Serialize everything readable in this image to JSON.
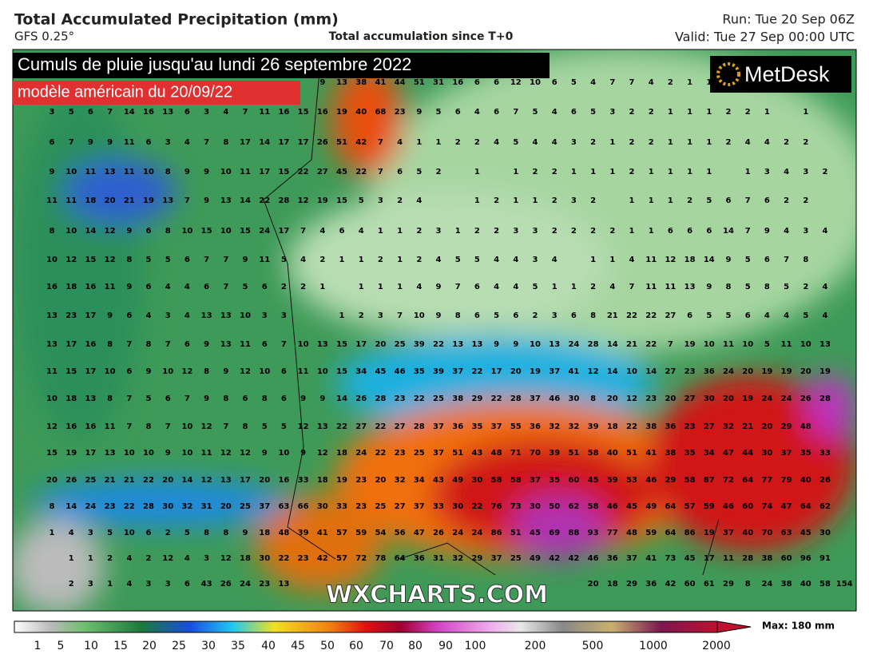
{
  "header": {
    "title": "Total Accumulated Precipitation (mm)",
    "model": "GFS 0.25°",
    "subtitle": "Total accumulation since T+0",
    "run": "Run: Tue 20 Sep 06Z",
    "valid": "Valid: Tue 27 Sep 00:00 UTC"
  },
  "overlay": {
    "headline": "Cumuls de pluie jusqu'au lundi 26 septembre 2022",
    "model_note": "modèle américain du 20/09/22",
    "logo": "MetDesk",
    "watermark": "WXCHARTS.COM"
  },
  "map": {
    "rows": [
      [
        null,
        null,
        null,
        null,
        null,
        null,
        null,
        null,
        null,
        null,
        null,
        null,
        null,
        null,
        9,
        13,
        38,
        41,
        44,
        51,
        31,
        16,
        6,
        6,
        12,
        10,
        6,
        5,
        4,
        7,
        7,
        4,
        2,
        1,
        1
      ],
      [
        3,
        5,
        6,
        7,
        14,
        16,
        13,
        6,
        3,
        4,
        7,
        11,
        16,
        15,
        16,
        19,
        40,
        68,
        23,
        9,
        5,
        6,
        4,
        6,
        7,
        5,
        4,
        6,
        5,
        3,
        2,
        2,
        1,
        1,
        1,
        2,
        2,
        1,
        null,
        1
      ],
      [
        6,
        7,
        9,
        9,
        11,
        6,
        3,
        4,
        7,
        8,
        17,
        14,
        17,
        17,
        26,
        51,
        42,
        7,
        4,
        1,
        1,
        2,
        2,
        4,
        5,
        4,
        4,
        3,
        2,
        1,
        2,
        2,
        1,
        1,
        1,
        2,
        4,
        4,
        2,
        2
      ],
      [
        9,
        10,
        11,
        13,
        11,
        10,
        8,
        9,
        9,
        10,
        11,
        17,
        15,
        22,
        27,
        45,
        22,
        7,
        6,
        5,
        2,
        null,
        1,
        null,
        1,
        2,
        2,
        1,
        1,
        1,
        2,
        1,
        1,
        1,
        1,
        null,
        1,
        3,
        4,
        3,
        2
      ],
      [
        11,
        11,
        18,
        20,
        21,
        19,
        13,
        7,
        9,
        13,
        14,
        22,
        28,
        12,
        19,
        15,
        5,
        3,
        2,
        4,
        null,
        null,
        1,
        2,
        1,
        1,
        2,
        3,
        2,
        null,
        1,
        1,
        1,
        2,
        5,
        6,
        7,
        6,
        2,
        2
      ],
      [
        8,
        10,
        14,
        12,
        9,
        6,
        8,
        10,
        15,
        10,
        15,
        24,
        17,
        7,
        4,
        6,
        4,
        1,
        1,
        2,
        3,
        1,
        2,
        2,
        3,
        3,
        2,
        2,
        2,
        2,
        1,
        1,
        6,
        6,
        6,
        14,
        7,
        9,
        4,
        3,
        4
      ],
      [
        10,
        12,
        15,
        12,
        8,
        5,
        5,
        6,
        7,
        7,
        9,
        11,
        5,
        4,
        2,
        1,
        1,
        2,
        1,
        2,
        4,
        5,
        5,
        4,
        4,
        3,
        4,
        null,
        1,
        1,
        4,
        11,
        12,
        18,
        14,
        9,
        5,
        6,
        7,
        8
      ],
      [
        16,
        18,
        16,
        11,
        9,
        6,
        4,
        4,
        6,
        7,
        5,
        6,
        2,
        2,
        1,
        null,
        1,
        1,
        1,
        4,
        9,
        7,
        6,
        4,
        4,
        5,
        1,
        1,
        2,
        4,
        7,
        11,
        11,
        13,
        9,
        8,
        5,
        8,
        5,
        2,
        4
      ],
      [
        13,
        23,
        17,
        9,
        6,
        4,
        3,
        4,
        13,
        13,
        10,
        3,
        3,
        null,
        null,
        1,
        2,
        3,
        7,
        10,
        9,
        8,
        6,
        5,
        6,
        2,
        3,
        6,
        8,
        21,
        22,
        22,
        27,
        6,
        5,
        5,
        6,
        4,
        4,
        5,
        4
      ],
      [
        13,
        17,
        16,
        8,
        7,
        8,
        7,
        6,
        9,
        13,
        11,
        6,
        7,
        10,
        13,
        15,
        17,
        20,
        25,
        39,
        22,
        13,
        13,
        9,
        9,
        10,
        13,
        24,
        28,
        14,
        21,
        22,
        7,
        19,
        10,
        11,
        10,
        5,
        11,
        10,
        13
      ],
      [
        11,
        15,
        17,
        10,
        6,
        9,
        10,
        12,
        8,
        9,
        12,
        10,
        6,
        11,
        10,
        15,
        34,
        45,
        46,
        35,
        39,
        37,
        22,
        17,
        20,
        19,
        37,
        41,
        12,
        14,
        10,
        14,
        27,
        23,
        36,
        24,
        20,
        19,
        19,
        20,
        19
      ],
      [
        10,
        18,
        13,
        8,
        7,
        5,
        6,
        7,
        9,
        8,
        6,
        8,
        6,
        9,
        9,
        14,
        26,
        28,
        23,
        22,
        25,
        38,
        29,
        22,
        28,
        37,
        46,
        30,
        8,
        20,
        12,
        23,
        20,
        27,
        30,
        20,
        19,
        24,
        24,
        26,
        28
      ],
      [
        12,
        16,
        16,
        11,
        7,
        8,
        7,
        10,
        12,
        7,
        8,
        5,
        5,
        12,
        13,
        22,
        27,
        22,
        27,
        28,
        37,
        36,
        35,
        37,
        55,
        36,
        32,
        32,
        39,
        18,
        22,
        38,
        36,
        23,
        27,
        32,
        21,
        20,
        29,
        48
      ],
      [
        15,
        19,
        17,
        13,
        10,
        10,
        9,
        10,
        11,
        12,
        12,
        9,
        10,
        9,
        12,
        18,
        24,
        22,
        23,
        25,
        37,
        51,
        43,
        48,
        71,
        70,
        39,
        51,
        58,
        40,
        51,
        41,
        38,
        35,
        34,
        47,
        44,
        30,
        37,
        35,
        33
      ],
      [
        20,
        26,
        25,
        21,
        21,
        22,
        20,
        14,
        12,
        13,
        17,
        20,
        16,
        33,
        18,
        19,
        23,
        20,
        32,
        34,
        43,
        49,
        30,
        58,
        58,
        37,
        35,
        60,
        45,
        59,
        53,
        46,
        29,
        58,
        87,
        72,
        64,
        77,
        79,
        40,
        26
      ],
      [
        8,
        14,
        24,
        23,
        22,
        28,
        30,
        32,
        31,
        20,
        25,
        37,
        63,
        66,
        30,
        33,
        23,
        25,
        27,
        37,
        33,
        30,
        22,
        76,
        73,
        30,
        50,
        62,
        58,
        46,
        45,
        49,
        64,
        57,
        59,
        46,
        60,
        74,
        47,
        64,
        62
      ],
      [
        1,
        4,
        3,
        5,
        10,
        6,
        2,
        5,
        8,
        8,
        9,
        18,
        48,
        39,
        41,
        57,
        59,
        54,
        56,
        47,
        26,
        24,
        24,
        86,
        51,
        45,
        69,
        88,
        93,
        77,
        48,
        59,
        64,
        86,
        19,
        37,
        40,
        70,
        63,
        45,
        30
      ],
      [
        null,
        1,
        1,
        2,
        4,
        2,
        12,
        4,
        3,
        12,
        18,
        30,
        22,
        23,
        42,
        57,
        72,
        78,
        64,
        36,
        31,
        32,
        29,
        37,
        25,
        49,
        42,
        42,
        46,
        36,
        37,
        41,
        73,
        45,
        17,
        11,
        28,
        38,
        60,
        96,
        91
      ],
      [
        null,
        2,
        3,
        1,
        4,
        3,
        3,
        6,
        43,
        26,
        24,
        23,
        13,
        null,
        null,
        null,
        null,
        null,
        null,
        null,
        null,
        null,
        null,
        null,
        null,
        null,
        null,
        null,
        20,
        18,
        29,
        36,
        42,
        60,
        61,
        29,
        8,
        24,
        38,
        40,
        58,
        154
      ]
    ]
  },
  "colorbar": {
    "labels": [
      1,
      5,
      10,
      15,
      20,
      25,
      30,
      35,
      40,
      45,
      50,
      60,
      70,
      80,
      90,
      100,
      200,
      500,
      1000,
      2000
    ],
    "max": "Max: 180 mm"
  }
}
